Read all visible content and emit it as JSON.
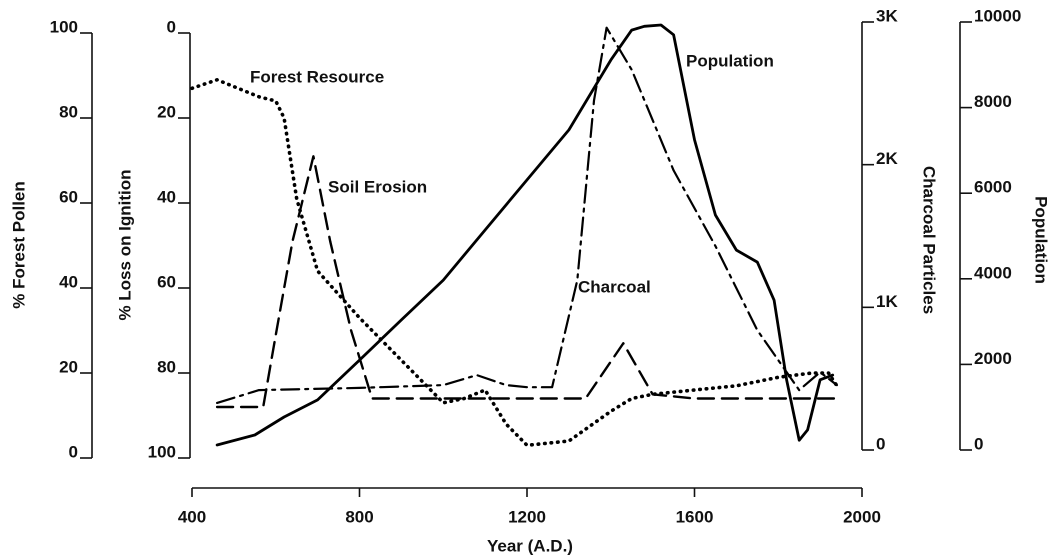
{
  "chart_data": {
    "type": "line",
    "xlabel": "Year (A.D.)",
    "xlim": [
      400,
      2000
    ],
    "xticks": [
      400,
      800,
      1200,
      1600,
      2000
    ],
    "ylabel": "% Forest Pollen",
    "ylim": [
      0,
      100
    ],
    "yticks": [
      0,
      20,
      40,
      60,
      80,
      100
    ],
    "y2label": "% Loss on Ignition",
    "y2lim": [
      100,
      0
    ],
    "y2ticks": [
      0,
      20,
      40,
      60,
      80,
      100
    ],
    "y3label": "Charcoal Particles",
    "y3lim": [
      0,
      3000
    ],
    "y3ticks": [
      0,
      {
        "value": 1000,
        "label": "1K"
      },
      {
        "value": 2000,
        "label": "2K"
      },
      {
        "value": 3000,
        "label": "3K"
      }
    ],
    "y4label": "Population",
    "y4lim": [
      0,
      10000
    ],
    "y4ticks": [
      0,
      2000,
      4000,
      6000,
      8000,
      10000
    ],
    "series": [
      {
        "name": "Forest Resource",
        "axis": "y",
        "color": "#000000",
        "style": "dotted",
        "x": [
          400,
          460,
          560,
          600,
          620,
          650,
          700,
          800,
          900,
          1000,
          1050,
          1100,
          1150,
          1200,
          1300,
          1400,
          1450,
          1500,
          1600,
          1700,
          1800,
          1880,
          1920,
          1940
        ],
        "values": [
          87,
          89,
          85,
          84,
          80,
          61,
          44,
          33,
          23,
          13,
          14,
          16,
          8,
          3,
          4,
          11,
          14,
          15,
          16,
          17,
          19,
          20,
          20,
          17
        ]
      },
      {
        "name": "Soil Erosion",
        "axis": "y2",
        "color": "#000000",
        "style": "dashed",
        "x": [
          460,
          570,
          600,
          640,
          690,
          730,
          780,
          830,
          1000,
          1340,
          1430,
          1500,
          1600,
          1940
        ],
        "values": [
          88,
          88,
          71,
          49,
          29,
          49,
          70,
          86,
          86,
          86,
          73,
          85,
          86,
          86
        ]
      },
      {
        "name": "Charcoal",
        "axis": "y3",
        "color": "#000000",
        "style": "dashdot",
        "x": [
          460,
          560,
          800,
          1000,
          1080,
          1150,
          1200,
          1260,
          1320,
          1360,
          1390,
          1450,
          1550,
          1650,
          1750,
          1850,
          1900,
          1940
        ],
        "values": [
          330,
          420,
          435,
          455,
          525,
          455,
          440,
          440,
          1190,
          2450,
          2960,
          2665,
          1960,
          1430,
          840,
          420,
          545,
          455
        ]
      },
      {
        "name": "Population",
        "axis": "y4",
        "color": "#000000",
        "style": "solid",
        "x": [
          460,
          550,
          620,
          700,
          800,
          900,
          1000,
          1100,
          1200,
          1300,
          1400,
          1450,
          1480,
          1520,
          1550,
          1600,
          1650,
          1700,
          1750,
          1790,
          1820,
          1850,
          1870,
          1900,
          1930
        ],
        "values": [
          117,
          350,
          770,
          1170,
          2100,
          3040,
          3970,
          5140,
          6310,
          7480,
          9110,
          9810,
          9900,
          9930,
          9700,
          7250,
          5490,
          4670,
          4390,
          3500,
          1640,
          230,
          470,
          1640,
          1750
        ]
      }
    ]
  }
}
